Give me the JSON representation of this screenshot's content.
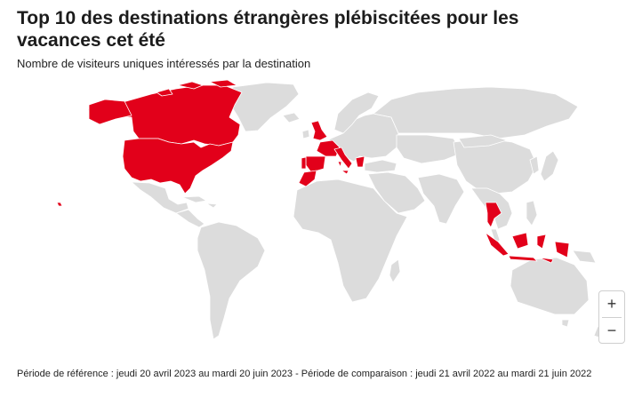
{
  "header": {
    "title": "Top 10 des destinations étrangères plébiscitées pour les vacances cet été",
    "subtitle": "Nombre de visiteurs uniques intéressés par la destination"
  },
  "map": {
    "land_color": "#dcdcdc",
    "highlight_color": "#e2001a",
    "border_color": "#ffffff",
    "highlighted_countries": [
      "Canada",
      "United States",
      "United Kingdom",
      "France",
      "Spain",
      "Portugal",
      "Italy",
      "Greece",
      "Morocco",
      "Thailand",
      "Indonesia"
    ]
  },
  "zoom": {
    "in_label": "+",
    "out_label": "−"
  },
  "footer": {
    "note": "Période de référence : jeudi 20 avril 2023 au mardi 20 juin 2023 - Période de comparaison : jeudi 21 avril 2022 au mardi 21 juin 2022"
  }
}
